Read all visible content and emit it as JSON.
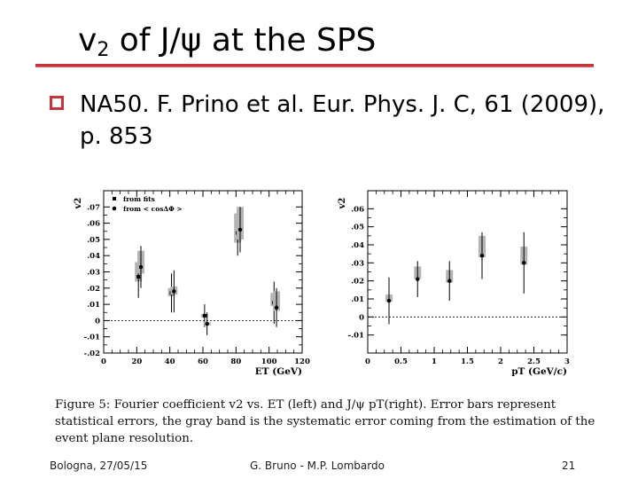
{
  "slide": {
    "title_main": "v",
    "title_sub": "2",
    "title_rest": " of J/ψ at the SPS",
    "bullet": "NA50. F. Prino et al. Eur. Phys. J. C, 61 (2009), p. 853",
    "caption": "Figure 5: Fourier coefficient v2 vs. ET (left) and J/ψ pT(right). Error bars represent statistical errors, the gray band is the systematic error coming from the estimation of the event plane resolution.",
    "footer_left": "Bologna, 27/05/15",
    "footer_center": "G. Bruno - M.P. Lombardo",
    "footer_right": "21",
    "accent_color": "#c8343a"
  },
  "chart_data": [
    {
      "type": "scatter",
      "ylabel": "v2",
      "xlabel": "ET (GeV)",
      "xlim": [
        0,
        120
      ],
      "ylim": [
        -0.02,
        0.08
      ],
      "xticks": [
        0,
        20,
        40,
        60,
        80,
        100,
        120
      ],
      "yticks": [
        -0.02,
        -0.01,
        0,
        0.01,
        0.02,
        0.03,
        0.04,
        0.05,
        0.06,
        0.07
      ],
      "legend": [
        "from fits",
        "from < cosΔΦ >"
      ],
      "legend_position": "top-left",
      "zero_line": "dotted",
      "series": [
        {
          "name": "from fits",
          "marker": "square",
          "points": [
            {
              "x": 21,
              "y": 0.027,
              "err": 0.013,
              "sys_lo": 0.024,
              "sys_hi": 0.036
            },
            {
              "x": 41,
              "y": 0.017,
              "err": 0.012,
              "sys_lo": 0.015,
              "sys_hi": 0.02
            },
            {
              "x": 61,
              "y": 0.003,
              "err": 0.007,
              "sys_lo": 0.002,
              "sys_hi": 0.004
            },
            {
              "x": 81,
              "y": 0.054,
              "err": 0.014,
              "sys_lo": 0.048,
              "sys_hi": 0.066
            },
            {
              "x": 103,
              "y": 0.011,
              "err": 0.013,
              "sys_lo": 0.009,
              "sys_hi": 0.017
            }
          ]
        },
        {
          "name": "from < cosΔΦ >",
          "marker": "circle",
          "points": [
            {
              "x": 22.5,
              "y": 0.033,
              "err": 0.013,
              "sys_lo": 0.029,
              "sys_hi": 0.043
            },
            {
              "x": 42.5,
              "y": 0.018,
              "err": 0.013,
              "sys_lo": 0.016,
              "sys_hi": 0.021
            },
            {
              "x": 62.5,
              "y": -0.002,
              "err": 0.007,
              "sys_lo": -0.003,
              "sys_hi": -0.001
            },
            {
              "x": 82.5,
              "y": 0.056,
              "err": 0.014,
              "sys_lo": 0.05,
              "sys_hi": 0.07
            },
            {
              "x": 104.5,
              "y": 0.008,
              "err": 0.012,
              "sys_lo": 0.006,
              "sys_hi": 0.018
            }
          ]
        }
      ]
    },
    {
      "type": "scatter",
      "ylabel": "v2",
      "xlabel": "pT (GeV/c)",
      "xlim": [
        0,
        3
      ],
      "ylim": [
        -0.02,
        0.07
      ],
      "xticks": [
        0,
        0.5,
        1,
        1.5,
        2,
        2.5,
        3
      ],
      "yticks": [
        -0.01,
        0,
        0.01,
        0.02,
        0.03,
        0.04,
        0.05,
        0.06
      ],
      "zero_line": "dotted",
      "series": [
        {
          "marker": "circle",
          "points": [
            {
              "x": 0.32,
              "y": 0.009,
              "err": 0.013,
              "sys_lo": 0.0085,
              "sys_hi": 0.0125
            },
            {
              "x": 0.75,
              "y": 0.021,
              "err": 0.01,
              "sys_lo": 0.021,
              "sys_hi": 0.028
            },
            {
              "x": 1.23,
              "y": 0.02,
              "err": 0.011,
              "sys_lo": 0.019,
              "sys_hi": 0.026
            },
            {
              "x": 1.72,
              "y": 0.034,
              "err": 0.013,
              "sys_lo": 0.033,
              "sys_hi": 0.045
            },
            {
              "x": 2.35,
              "y": 0.03,
              "err": 0.017,
              "sys_lo": 0.029,
              "sys_hi": 0.039
            }
          ]
        }
      ]
    }
  ]
}
